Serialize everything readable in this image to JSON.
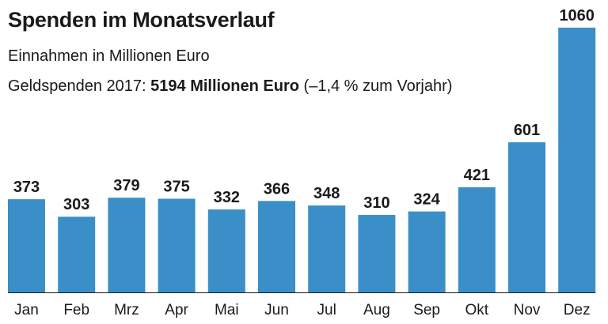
{
  "title": "Spenden im Monatsverlauf",
  "subtitle": "Einnahmen in Millionen Euro",
  "note": {
    "prefix": "Geldspenden 2017: ",
    "highlight": "5194 Millionen Euro",
    "suffix": " (–1,4 % zum Vorjahr)"
  },
  "colors": {
    "bar": "#3a8fc9",
    "text": "#1a1a1a",
    "baseline": "#1a1a1a"
  },
  "chart_data": {
    "type": "bar",
    "title": "Spenden im Monatsverlauf",
    "subtitle": "Einnahmen in Millionen Euro",
    "categories": [
      "Jan",
      "Feb",
      "Mrz",
      "Apr",
      "Mai",
      "Jun",
      "Jul",
      "Aug",
      "Sep",
      "Okt",
      "Nov",
      "Dez"
    ],
    "values": [
      373,
      303,
      379,
      375,
      332,
      366,
      348,
      310,
      324,
      421,
      601,
      1060
    ],
    "value_labels": [
      "373",
      "303",
      "379",
      "375",
      "332",
      "366",
      "348",
      "310",
      "324",
      "421",
      "601",
      "1060"
    ],
    "ylim": [
      0,
      1060
    ],
    "grid": false,
    "legend": "none"
  }
}
